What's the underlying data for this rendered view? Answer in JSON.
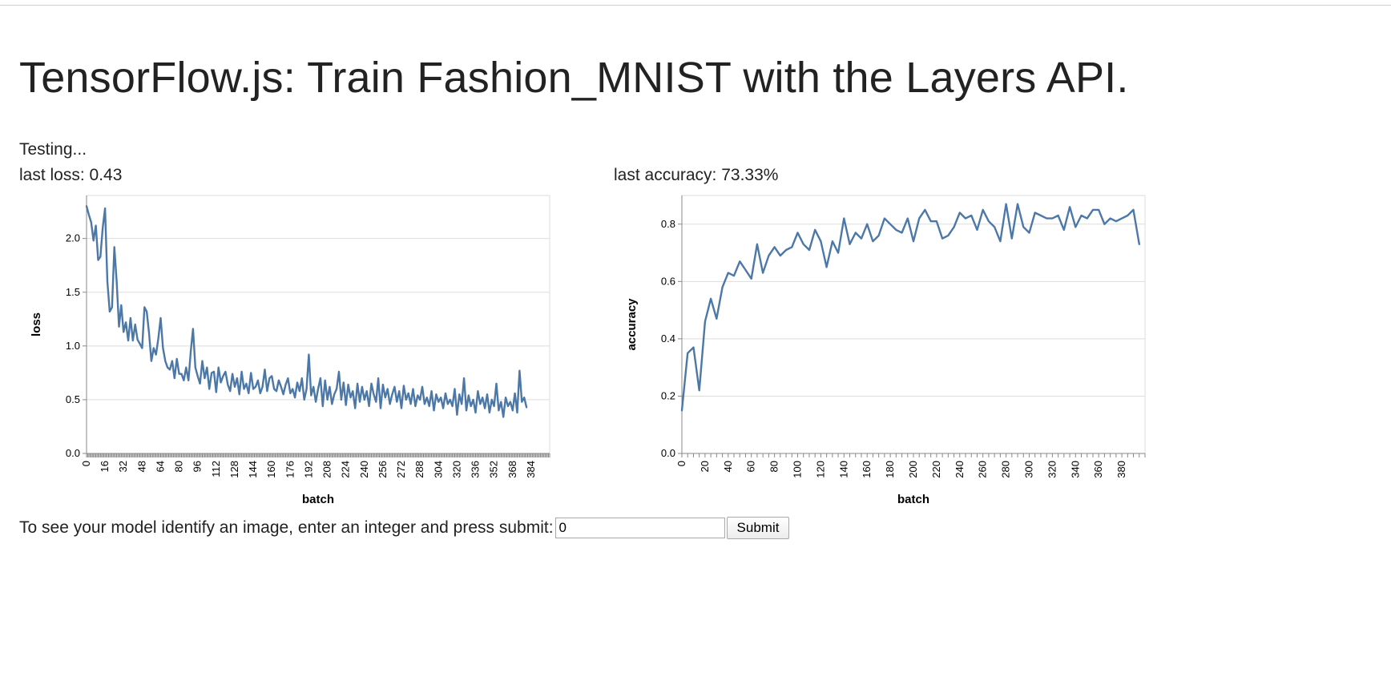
{
  "page": {
    "title": "TensorFlow.js: Train Fashion_MNIST with the Layers API.",
    "status": "Testing...",
    "last_loss_label": "last loss: 0.43",
    "last_accuracy_label": "last accuracy: 73.33%",
    "prompt": "To see your model identify an image, enter an integer and press submit:",
    "input_value": "0",
    "submit_label": "Submit"
  },
  "colors": {
    "line": "#4c78a8",
    "grid": "#dddddd",
    "axis": "#888888"
  },
  "chart_data": [
    {
      "type": "line",
      "name": "loss",
      "xlabel": "batch",
      "ylabel": "loss",
      "xlim": [
        0,
        400
      ],
      "ylim": [
        0,
        2.4
      ],
      "x_ticks": [
        0,
        16,
        32,
        48,
        64,
        80,
        96,
        112,
        128,
        144,
        160,
        176,
        192,
        208,
        224,
        240,
        256,
        272,
        288,
        304,
        320,
        336,
        352,
        368,
        384
      ],
      "x_minor_step": 1,
      "y_ticks": [
        0,
        0.5,
        1.0,
        1.5,
        2.0
      ],
      "y_tick_labels": [
        "0.0",
        "0.5",
        "1.0",
        "1.5",
        "2.0"
      ],
      "grid": true,
      "x_step": 2,
      "values": [
        2.3,
        2.22,
        2.15,
        1.98,
        2.12,
        1.8,
        1.83,
        2.1,
        2.28,
        1.6,
        1.32,
        1.36,
        1.92,
        1.6,
        1.18,
        1.38,
        1.13,
        1.22,
        1.05,
        1.26,
        1.05,
        1.2,
        1.06,
        1.02,
        0.98,
        1.36,
        1.32,
        1.12,
        0.86,
        0.98,
        0.92,
        1.07,
        1.26,
        0.98,
        0.86,
        0.8,
        0.78,
        0.86,
        0.7,
        0.88,
        0.74,
        0.74,
        0.68,
        0.8,
        0.68,
        0.95,
        1.16,
        0.8,
        0.72,
        0.65,
        0.86,
        0.7,
        0.8,
        0.6,
        0.75,
        0.76,
        0.57,
        0.8,
        0.66,
        0.72,
        0.76,
        0.64,
        0.58,
        0.74,
        0.62,
        0.7,
        0.55,
        0.76,
        0.6,
        0.65,
        0.56,
        0.75,
        0.6,
        0.62,
        0.68,
        0.56,
        0.62,
        0.78,
        0.58,
        0.7,
        0.72,
        0.6,
        0.58,
        0.68,
        0.62,
        0.55,
        0.64,
        0.7,
        0.56,
        0.6,
        0.52,
        0.66,
        0.58,
        0.7,
        0.5,
        0.6,
        0.92,
        0.54,
        0.62,
        0.48,
        0.6,
        0.7,
        0.44,
        0.68,
        0.5,
        0.62,
        0.46,
        0.55,
        0.6,
        0.76,
        0.5,
        0.66,
        0.45,
        0.64,
        0.52,
        0.58,
        0.42,
        0.65,
        0.48,
        0.62,
        0.5,
        0.58,
        0.44,
        0.65,
        0.55,
        0.48,
        0.7,
        0.42,
        0.64,
        0.52,
        0.6,
        0.46,
        0.55,
        0.62,
        0.48,
        0.58,
        0.42,
        0.63,
        0.5,
        0.56,
        0.46,
        0.6,
        0.44,
        0.54,
        0.5,
        0.62,
        0.46,
        0.52,
        0.44,
        0.58,
        0.4,
        0.55,
        0.48,
        0.52,
        0.42,
        0.56,
        0.46,
        0.5,
        0.44,
        0.6,
        0.36,
        0.55,
        0.46,
        0.7,
        0.4,
        0.54,
        0.44,
        0.5,
        0.38,
        0.58,
        0.46,
        0.52,
        0.42,
        0.55,
        0.38,
        0.5,
        0.44,
        0.65,
        0.4,
        0.48,
        0.34,
        0.52,
        0.44,
        0.48,
        0.4,
        0.56,
        0.38,
        0.77,
        0.48,
        0.52,
        0.43
      ]
    },
    {
      "type": "line",
      "name": "accuracy",
      "xlabel": "batch",
      "ylabel": "accuracy",
      "xlim": [
        0,
        400
      ],
      "ylim": [
        0,
        0.9
      ],
      "x_ticks": [
        0,
        20,
        40,
        60,
        80,
        100,
        120,
        140,
        160,
        180,
        200,
        220,
        240,
        260,
        280,
        300,
        320,
        340,
        360,
        380
      ],
      "x_minor_step": 5,
      "y_ticks": [
        0,
        0.2,
        0.4,
        0.6,
        0.8
      ],
      "y_tick_labels": [
        "0.0",
        "0.2",
        "0.4",
        "0.6",
        "0.8"
      ],
      "grid": true,
      "x_step": 5,
      "values": [
        0.15,
        0.35,
        0.37,
        0.22,
        0.46,
        0.54,
        0.47,
        0.58,
        0.63,
        0.62,
        0.67,
        0.64,
        0.61,
        0.73,
        0.63,
        0.69,
        0.72,
        0.69,
        0.71,
        0.72,
        0.77,
        0.73,
        0.71,
        0.78,
        0.74,
        0.65,
        0.74,
        0.7,
        0.82,
        0.73,
        0.77,
        0.75,
        0.8,
        0.74,
        0.76,
        0.82,
        0.8,
        0.78,
        0.77,
        0.82,
        0.74,
        0.82,
        0.85,
        0.81,
        0.81,
        0.75,
        0.76,
        0.79,
        0.84,
        0.82,
        0.83,
        0.78,
        0.85,
        0.81,
        0.79,
        0.74,
        0.87,
        0.75,
        0.87,
        0.79,
        0.77,
        0.84,
        0.83,
        0.82,
        0.82,
        0.83,
        0.78,
        0.86,
        0.79,
        0.83,
        0.82,
        0.85,
        0.85,
        0.8,
        0.82,
        0.81,
        0.82,
        0.83,
        0.85,
        0.73
      ]
    }
  ]
}
